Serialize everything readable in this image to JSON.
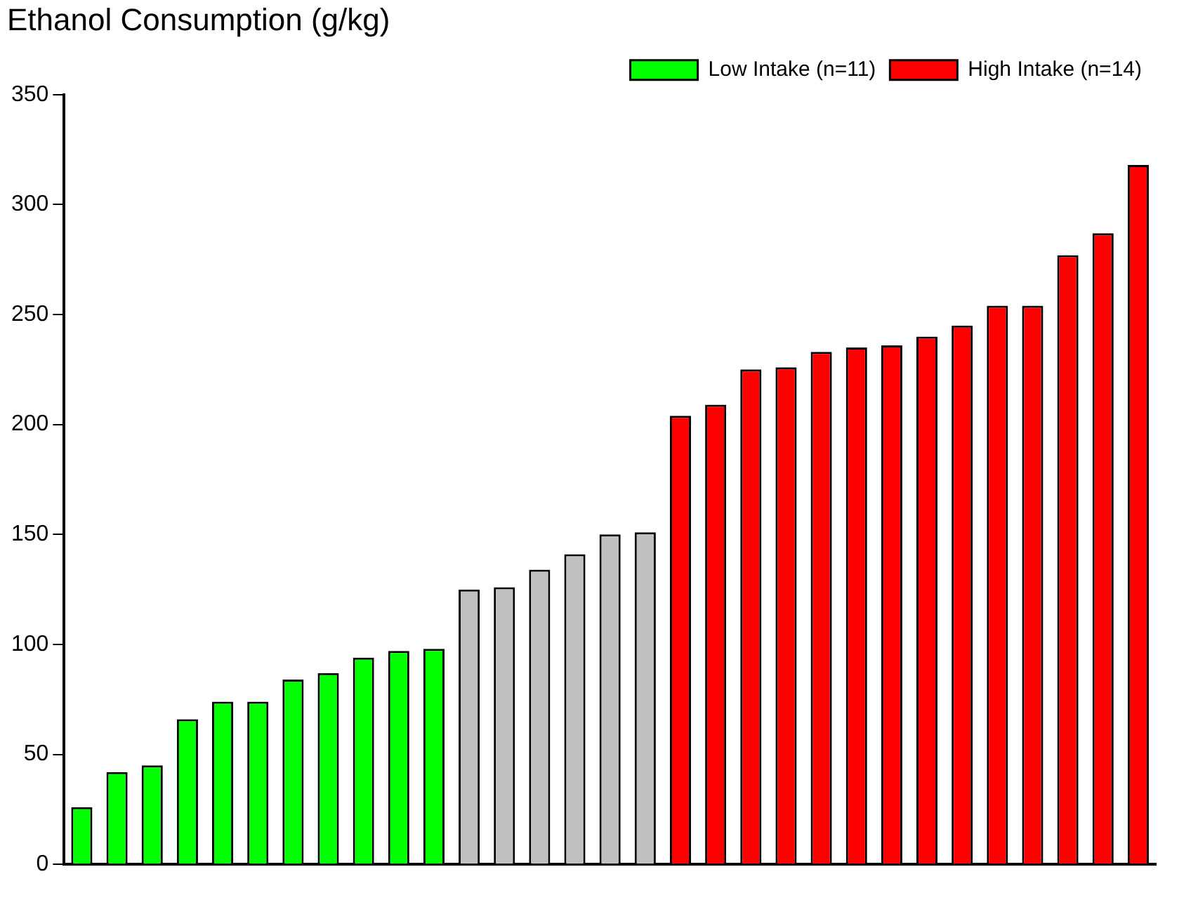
{
  "chart_data": {
    "type": "bar",
    "title": "Ethanol Consumption (g/kg)",
    "categories": [
      null,
      null,
      null,
      null,
      null,
      null,
      null,
      null,
      null,
      null,
      null,
      null,
      null,
      null,
      null,
      null,
      null,
      null,
      null,
      null,
      null,
      null,
      null,
      null,
      null,
      null,
      null,
      null,
      null,
      null,
      null
    ],
    "series": [
      {
        "name": "Low Intake (n=11)",
        "color": "#00ff00",
        "values": [
          26,
          42,
          45,
          66,
          74,
          74,
          84,
          87,
          94,
          97,
          98,
          null,
          null,
          null,
          null,
          null,
          null,
          null,
          null,
          null,
          null,
          null,
          null,
          null,
          null,
          null,
          null,
          null,
          null,
          null,
          null
        ]
      },
      {
        "color": "#c0c0c0",
        "values": [
          null,
          null,
          null,
          null,
          null,
          null,
          null,
          null,
          null,
          null,
          null,
          125,
          126,
          134,
          141,
          150,
          151,
          null,
          null,
          null,
          null,
          null,
          null,
          null,
          null,
          null,
          null,
          null,
          null,
          null,
          null
        ]
      },
      {
        "name": "High Intake (n=14)",
        "color": "#ff0000",
        "values": [
          null,
          null,
          null,
          null,
          null,
          null,
          null,
          null,
          null,
          null,
          null,
          null,
          null,
          null,
          null,
          null,
          null,
          204,
          209,
          225,
          226,
          233,
          235,
          236,
          240,
          245,
          254,
          254,
          277,
          287,
          318
        ]
      }
    ],
    "ylim": [
      0,
      350
    ],
    "yticks": [
      0,
      50,
      100,
      150,
      200,
      250,
      300,
      350
    ],
    "grid": false,
    "legend": "top right"
  }
}
